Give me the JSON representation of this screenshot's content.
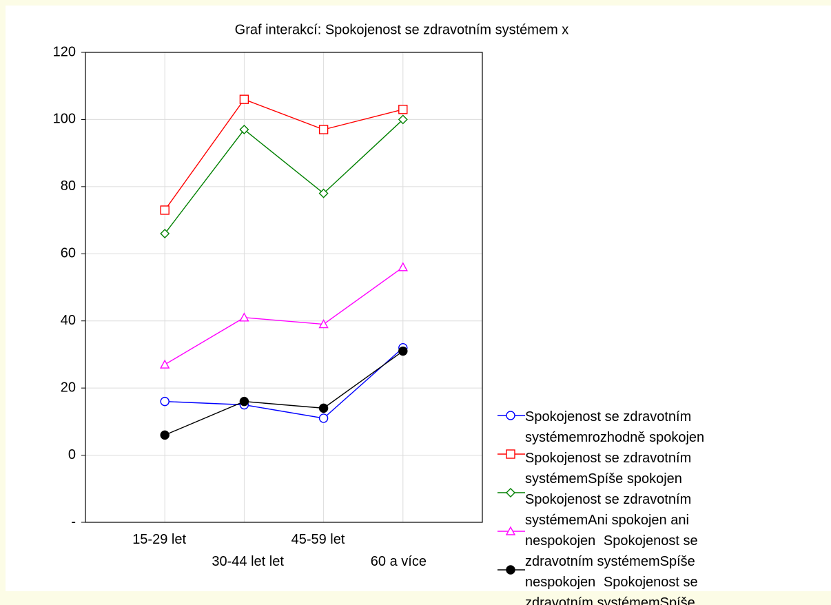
{
  "chart_data": {
    "type": "line",
    "title": "Graf interakcí: Spokojenost se zdravotním systémem x",
    "categories": [
      "15-29 let",
      "30-44 let let",
      "45-59 let",
      "60 a více"
    ],
    "series": [
      {
        "name": "Spokojenost se zdravotním systémemrozhodně spokojen",
        "color": "#0000ff",
        "marker": "circle",
        "values": [
          16,
          15,
          11,
          32
        ]
      },
      {
        "name": "Spokojenost se zdravotním systémemSpíše spokojen",
        "color": "#ff0000",
        "marker": "square",
        "values": [
          73,
          106,
          97,
          103
        ]
      },
      {
        "name": "Spokojenost se zdravotním systémemAni spokojen ani nespokojen",
        "color": "#008000",
        "marker": "diamond",
        "values": [
          66,
          97,
          78,
          100
        ]
      },
      {
        "name": "Spokojenost se zdravotním systémemSpíše nespokojen",
        "color": "#ff00ff",
        "marker": "triangle",
        "values": [
          27,
          41,
          39,
          56
        ]
      },
      {
        "name": "Spokojenost se zdravotním systémemSpíše nespokojen",
        "color": "#000000",
        "marker": "filled-circle",
        "values": [
          6,
          16,
          14,
          31
        ]
      }
    ],
    "ylim": [
      -20,
      120
    ],
    "yticks": [
      {
        "value": -20,
        "label": "-"
      },
      0,
      20,
      40,
      60,
      80,
      100,
      120
    ],
    "grid": true
  }
}
